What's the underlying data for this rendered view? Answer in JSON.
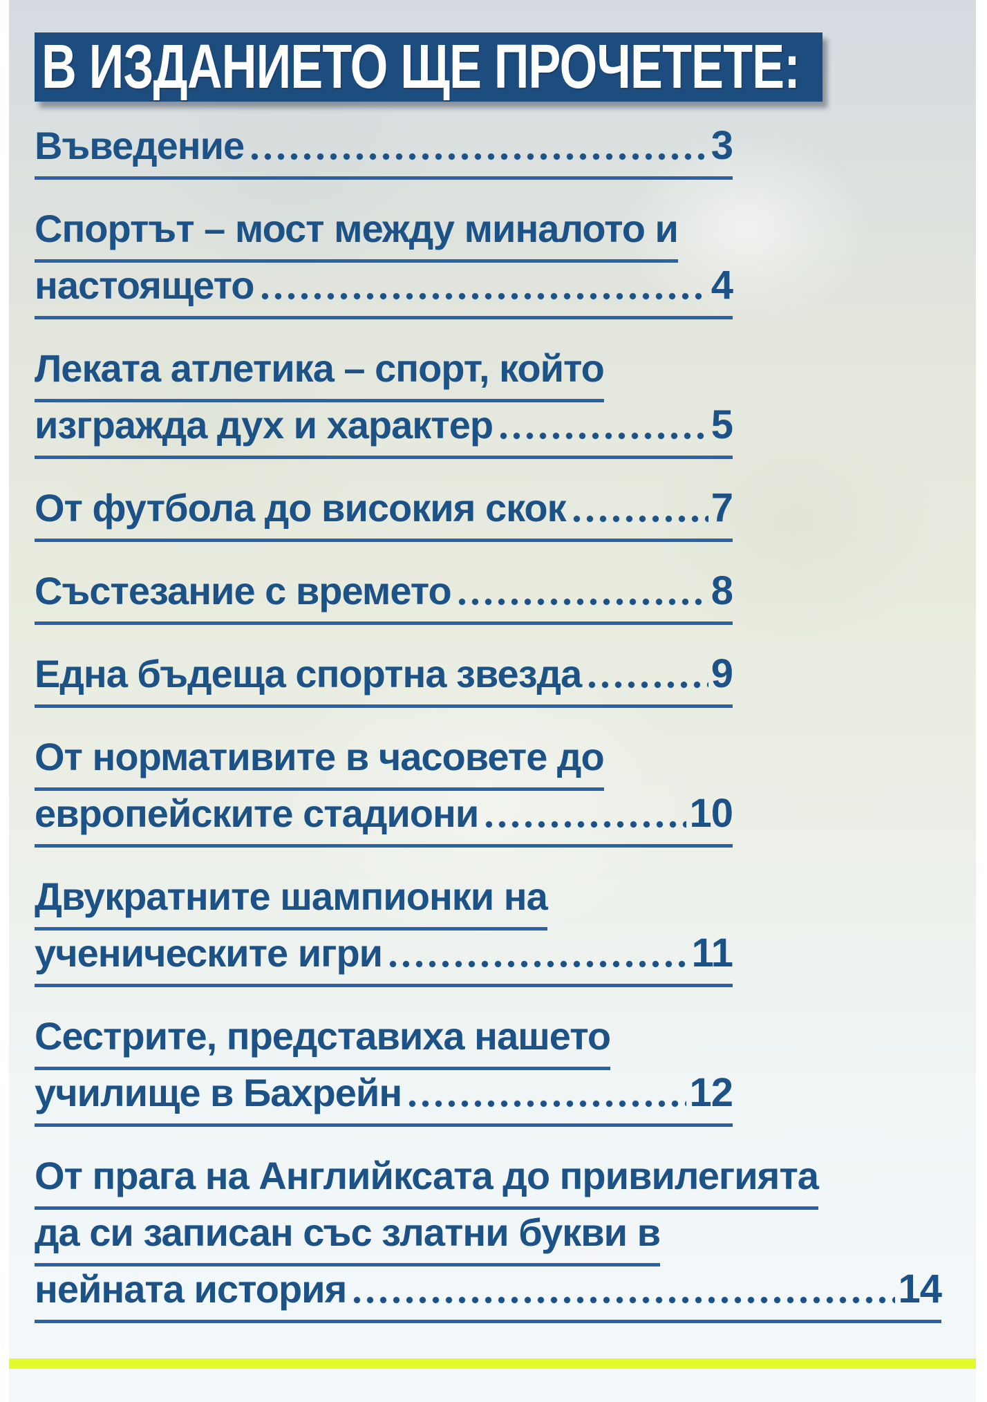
{
  "page": {
    "title": "В ИЗДАНИЕТО ЩЕ ПРОЧЕТЕТЕ:",
    "colors": {
      "header_bg": "#1d4d7f",
      "link_blue": "#1d5287",
      "underline_blue": "#2b62a3",
      "accent_yellow": "#e1fb2d"
    }
  },
  "toc": {
    "entries": [
      {
        "lines": [
          "Въведение"
        ],
        "page": "3"
      },
      {
        "lines": [
          "Спортът – мост между миналото и",
          "настоящето"
        ],
        "page": "4"
      },
      {
        "lines": [
          "Леката атлетика – спорт, който",
          "изгражда дух и характер"
        ],
        "page": "5"
      },
      {
        "lines": [
          "От футбола до високия скок"
        ],
        "page": "7"
      },
      {
        "lines": [
          "Състезание с времето"
        ],
        "page": "8"
      },
      {
        "lines": [
          "Една бъдеща спортна звезда"
        ],
        "page": "9"
      },
      {
        "lines": [
          "От нормативите в часовете до",
          "европейските стадиони"
        ],
        "page": "10"
      },
      {
        "lines": [
          "Двукратните шампионки на",
          "ученическите игри"
        ],
        "page": "11"
      },
      {
        "lines": [
          "Сестрите, представиха нашето",
          "училище в Бахрейн"
        ],
        "page": "12"
      },
      {
        "lines": [
          "От прага на Английксата до привилегията",
          "да си записан със златни букви в",
          "нейната история"
        ],
        "page": "14",
        "wide": true
      }
    ]
  }
}
